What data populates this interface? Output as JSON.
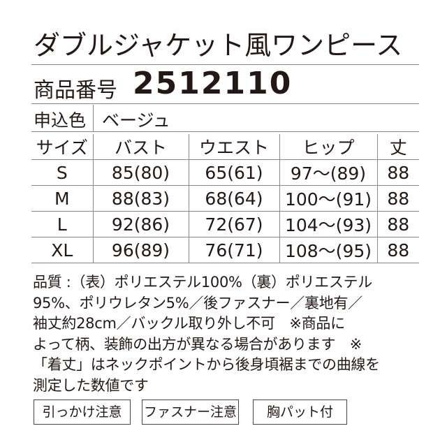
{
  "header": {
    "title": "ダブルジャケット風ワンピース",
    "product_number_label": "商品番号",
    "product_number": "2512110"
  },
  "color_row": {
    "label": "申込色",
    "value": "ベージュ"
  },
  "table": {
    "header": [
      "サイズ",
      "バスト",
      "ウエスト",
      "ヒップ",
      "丈"
    ],
    "rows": [
      [
        "S",
        "85(80)",
        "65(61)",
        "97〜(89)",
        "88"
      ],
      [
        "M",
        "88(83)",
        "68(64)",
        "100〜(91)",
        "88"
      ],
      [
        "L",
        "92(86)",
        "72(67)",
        "104〜(93)",
        "88"
      ],
      [
        "XL",
        "96(89)",
        "76(71)",
        "108〜(95)",
        "88"
      ]
    ]
  },
  "notes": [
    "品質 :（表）ポリエステル100%（裏）ポリエステル",
    "95%、ポリウレタン5%／後ファスナー／裏地有／",
    "袖丈約28cm／バックル取り外し不可　※商品に",
    "よって柄、装飾の出方が異なる場合があります　※",
    "「着丈」はネックポイントから後身頃裾までの曲線を",
    "測定した数値です"
  ],
  "tags": [
    "引っかけ注意",
    "ファスナー注意",
    "胸パット付"
  ]
}
